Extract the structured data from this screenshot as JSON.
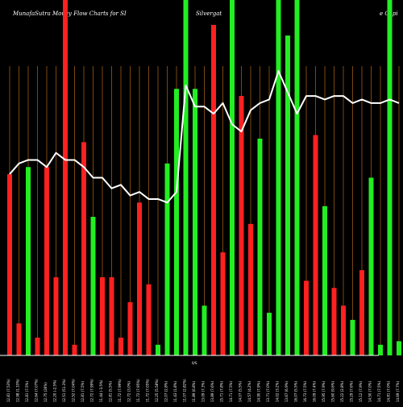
{
  "header": {
    "title_left": "MunafaSutra  Money Flow  Charts for SI",
    "title_mid": "Silvergat",
    "title_right": "e   Capi"
  },
  "colors": {
    "up": "#22ee22",
    "down": "#ff2020",
    "line": "#ffffff",
    "grid": "#9a5a14",
    "background": "#000000"
  },
  "chart_data": {
    "type": "bar",
    "title": "MunafaSutra  Money Flow  Charts for SI Silvergate Capi",
    "ylim": [
      0,
      100
    ],
    "categories": [
      "12.81 (7.53%)",
      "12.98 (1.33%)",
      "12.81 (7.5%)",
      "12.64 (7.07%)",
      "12.75 (26%)",
      "12.20 (-2.5%)",
      "12.51 (51.3%)",
      "12.52 (7.04%)",
      "12.81 (7.5%)",
      "12.72 (7.99%)",
      "11.44 (-3.5%)",
      "12.81 (5.5%)",
      "11.72 (7.99%)",
      "12.72 (3.0%)",
      "11.72 (7.95%)",
      "11.72 (7.05%)",
      "12.25 (5.58%)",
      "12.07 (2.8%)",
      "11.43 (1.8%)",
      "11.07 (2.82%)",
      "11.89 (6.8%)",
      "13.09 (7.3%)",
      "13.89 (7.6%)",
      "15.71 (7.8%)",
      "14.71 (7.5%)",
      "14.07 (5.5%)",
      "14.57 (4.2%)",
      "14.90 (7.9%)",
      "13.71 (7.0%)",
      "14.02 (3.2%)",
      "13.67 (6.9%)",
      "16.07 (5.5%)",
      "16.73 (7.5%)",
      "16.09 (7.4%)",
      "15.95 (7.9%)",
      "15.60 (9.6%)",
      "15.22 (2.8%)",
      "15.29 (7.6%)",
      "15.12 (7.9%)",
      "14.50 (7.0%)",
      "14.71 (7.5%)",
      "14.81 (7.0%)",
      "14.69 (7.7%)"
    ],
    "bar_heights": [
      51,
      9,
      53,
      5,
      53,
      22,
      100,
      3,
      60,
      39,
      22,
      22,
      5,
      15,
      43,
      20,
      3,
      54,
      75,
      100,
      75,
      14,
      93,
      29,
      100,
      73,
      37,
      61,
      12,
      100,
      90,
      100,
      21,
      62,
      42,
      19,
      14,
      10,
      24,
      50,
      3,
      100,
      4
    ],
    "bar_directions": [
      "down",
      "down",
      "up",
      "down",
      "down",
      "down",
      "down",
      "down",
      "down",
      "up",
      "down",
      "down",
      "down",
      "down",
      "down",
      "down",
      "up",
      "up",
      "up",
      "up",
      "up",
      "up",
      "down",
      "down",
      "up",
      "down",
      "down",
      "up",
      "up",
      "up",
      "up",
      "up",
      "down",
      "down",
      "up",
      "down",
      "down",
      "up",
      "down",
      "up",
      "up",
      "up",
      "up"
    ],
    "line_values": [
      51,
      54,
      55,
      55,
      53,
      57,
      55,
      55,
      53,
      50,
      50,
      47,
      48,
      45,
      46,
      44,
      44,
      43,
      46,
      76,
      70,
      70,
      68,
      71,
      65,
      63,
      69,
      71,
      72,
      80,
      74,
      68,
      73,
      73,
      72,
      73,
      73,
      71,
      72,
      71,
      71,
      72,
      71
    ],
    "x_tick_labels": [
      "12.81 (7.53%)",
      "12.98 (1.33%)",
      "12.81 (7.5%)",
      "12.64 (7.07%)",
      "12.75 (26%)",
      "12.20 (-2.5%)",
      "12.51 (51.3%)",
      "12.52 (7.04%)",
      "12.81 (7.5%)",
      "12.72 (7.99%)",
      "11.44 (-3.5%)",
      "12.81 (5.5%)",
      "11.72 (7.99%)",
      "12.72 (3.0%)",
      "11.72 (7.95%)",
      "11.72 (7.05%)",
      "12.25 (5.58%)",
      "12.07 (2.8%)",
      "11.43 (1.8%)",
      "11.07 (2.82%)",
      "11.89 (6.8%)",
      "13.09 (7.3%)",
      "13.89 (7.6%)",
      "15.71 (7.8%)",
      "14.71 (7.5%)",
      "14.07 (5.5%)",
      "14.57 (4.2%)",
      "14.90 (7.9%)",
      "13.71 (7.0%)",
      "14.02 (3.2%)",
      "13.67 (6.9%)",
      "16.07 (5.5%)",
      "16.73 (7.5%)",
      "16.09 (7.4%)",
      "15.95 (7.9%)",
      "15.60 (9.6%)",
      "15.22 (2.8%)",
      "15.29 (7.6%)",
      "15.12 (7.9%)",
      "14.50 (7.0%)",
      "14.71 (7.5%)",
      "14.81 (7.0%)",
      "14.69 (7.7%)"
    ],
    "center_label": "0/S",
    "grid": true
  }
}
